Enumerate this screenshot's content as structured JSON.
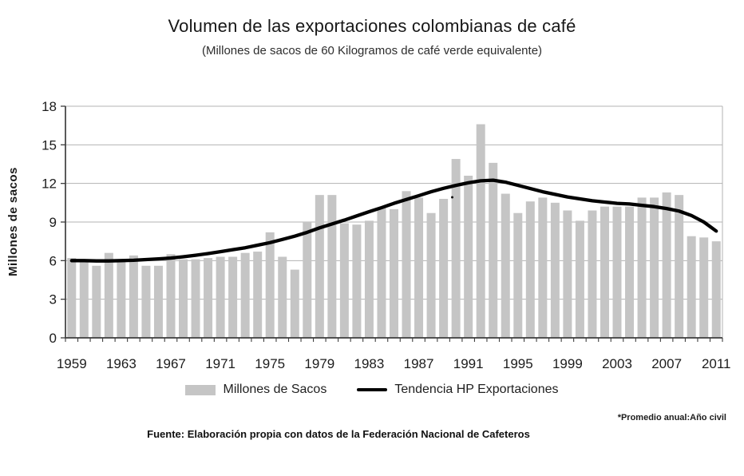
{
  "chart_data": {
    "type": "bar",
    "title": "Volumen de las exportaciones colombianas de café",
    "subtitle": "(Millones de sacos de 60 Kilogramos de café verde equivalente)",
    "ylabel": "Millones de sacos",
    "xlabel": "",
    "ylim": [
      0,
      18
    ],
    "yticks": [
      0,
      3,
      6,
      9,
      12,
      15,
      18
    ],
    "grid": true,
    "legend_position": "bottom",
    "x": [
      1959,
      1960,
      1961,
      1962,
      1963,
      1964,
      1965,
      1966,
      1967,
      1968,
      1969,
      1970,
      1971,
      1972,
      1973,
      1974,
      1975,
      1976,
      1977,
      1978,
      1979,
      1980,
      1981,
      1982,
      1983,
      1984,
      1985,
      1986,
      1987,
      1988,
      1989,
      1990,
      1991,
      1992,
      1993,
      1994,
      1995,
      1996,
      1997,
      1998,
      1999,
      2000,
      2001,
      2002,
      2003,
      2004,
      2005,
      2006,
      2007,
      2008,
      2009,
      2010,
      2011
    ],
    "x_labeled_ticks": [
      1959,
      1963,
      1967,
      1971,
      1975,
      1979,
      1983,
      1987,
      1991,
      1995,
      1999,
      2003,
      2007,
      2011
    ],
    "series": [
      {
        "name": "Millones de Sacos",
        "type": "bar",
        "color": "#c5c5c5",
        "values": [
          6.2,
          5.9,
          5.6,
          6.6,
          6.0,
          6.4,
          5.6,
          5.6,
          6.5,
          6.1,
          6.1,
          6.2,
          6.3,
          6.3,
          6.6,
          6.7,
          8.2,
          6.3,
          5.3,
          9.0,
          11.1,
          11.1,
          8.9,
          8.8,
          9.1,
          10.1,
          10.0,
          11.4,
          10.9,
          9.7,
          10.8,
          13.9,
          12.6,
          16.6,
          13.6,
          11.2,
          9.7,
          10.6,
          10.9,
          10.5,
          9.9,
          9.1,
          9.9,
          10.2,
          10.2,
          10.2,
          10.9,
          10.9,
          11.3,
          11.1,
          7.9,
          7.8,
          7.5
        ]
      },
      {
        "name": "Tendencia HP Exportaciones",
        "type": "line",
        "color": "#000000",
        "values": [
          6.0,
          6.0,
          5.98,
          5.98,
          6.0,
          6.03,
          6.08,
          6.14,
          6.2,
          6.3,
          6.42,
          6.55,
          6.7,
          6.85,
          7.0,
          7.2,
          7.4,
          7.65,
          7.9,
          8.2,
          8.55,
          8.85,
          9.15,
          9.48,
          9.8,
          10.12,
          10.45,
          10.75,
          11.05,
          11.35,
          11.62,
          11.85,
          12.05,
          12.2,
          12.25,
          12.1,
          11.85,
          11.6,
          11.35,
          11.15,
          10.95,
          10.8,
          10.65,
          10.55,
          10.45,
          10.4,
          10.3,
          10.2,
          10.05,
          9.85,
          9.5,
          9.0,
          8.3
        ]
      }
    ]
  },
  "footer": {
    "source": "Fuente: Elaboración propia con datos de la Federación Nacional de Cafeteros",
    "note": "*Promedio anual:Año civil"
  },
  "colors": {
    "bar": "#c5c5c5",
    "trend": "#000000",
    "grid": "#b3b3b3",
    "axis": "#3d3d3d",
    "text": "#1c1c1c"
  }
}
